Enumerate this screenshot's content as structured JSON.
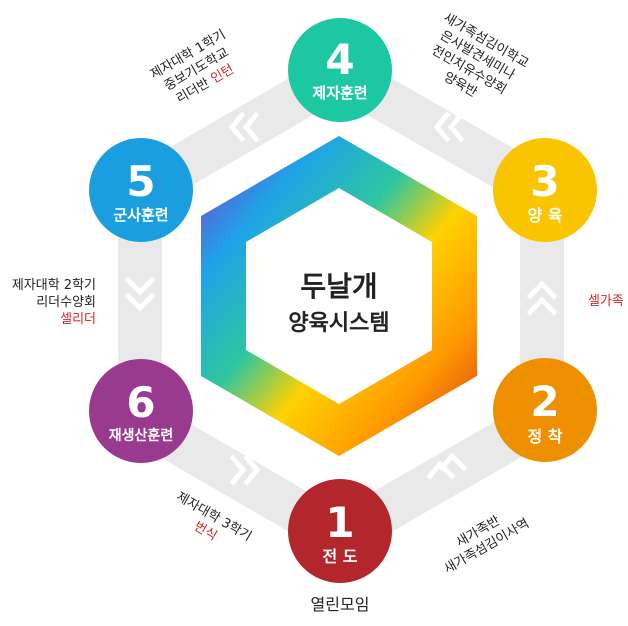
{
  "center": {
    "line1": "두날개",
    "line2": "양육시스템"
  },
  "stages": [
    {
      "number": "1",
      "label": "전 도",
      "color": "#b3262b"
    },
    {
      "number": "2",
      "label": "정 착",
      "color": "#ee8f00"
    },
    {
      "number": "3",
      "label": "양 육",
      "color": "#f9c400"
    },
    {
      "number": "4",
      "label": "제자훈련",
      "color": "#1dc7a2"
    },
    {
      "number": "5",
      "label": "군사훈련",
      "color": "#1a9ee0"
    },
    {
      "number": "6",
      "label": "재생산훈련",
      "color": "#9a3a8e"
    }
  ],
  "annotations": {
    "stage1_below": "열린모임",
    "stage12": {
      "line1": "새가족반",
      "line2": "새가족섬김이사역"
    },
    "stage23": "셀가족",
    "stage34": {
      "line1": "새가족섬김이학교",
      "line2": "은사발견세미나",
      "line3": "전인치유수양회",
      "line4": "양육반"
    },
    "stage45": {
      "line1": "제자대학 1학기",
      "line2": "중보기도학교",
      "line3_plain": "리더반",
      "line3_red": "인턴"
    },
    "stage56": {
      "line1": "제자대학 2학기",
      "line2": "리더수양회",
      "line3_red": "셀리더"
    },
    "stage61": {
      "line1": "제자대학 3학기",
      "line2_red": "번식"
    }
  },
  "colors": {
    "ring": "#e9e9e9",
    "chevron": "#ffffff",
    "text": "#222222",
    "accent_red": "#d0262e"
  }
}
